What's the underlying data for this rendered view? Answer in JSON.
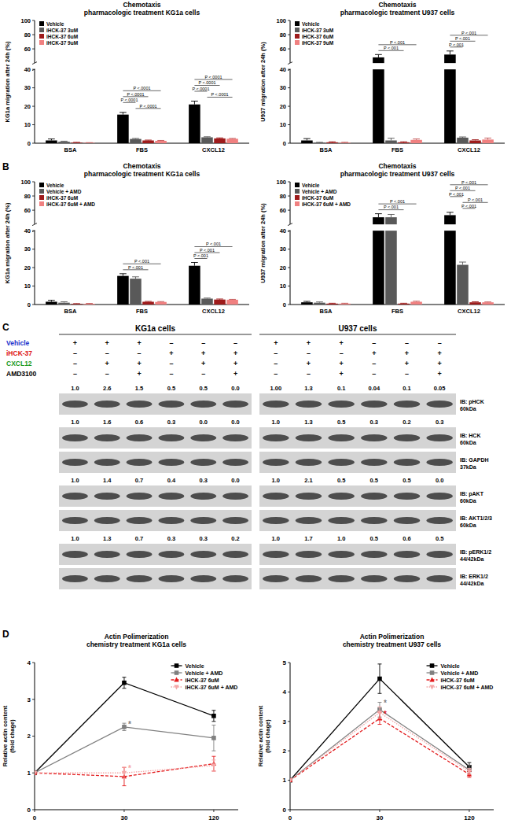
{
  "chart_data": [
    {
      "type": "bar",
      "title": "Chemotaxis",
      "subtitle": "pharmacologic treatment KG1a cells",
      "y_label": "KG1a migration after 24h (%)",
      "categories": [
        "BSA",
        "FBS",
        "CXCL12"
      ],
      "ylim": [
        0,
        100
      ],
      "yticks": [
        0,
        10,
        20,
        30,
        40,
        60,
        80,
        100
      ],
      "legend": "upper left",
      "series": [
        {
          "name": "Vehicle",
          "color": "#000000",
          "values": [
            1.5,
            15.5,
            21
          ],
          "errors": [
            0.8,
            1.2,
            1.8
          ]
        },
        {
          "name": "iHCK-37 3uM",
          "color": "#595959",
          "values": [
            0.8,
            2.3,
            3.2
          ],
          "errors": [
            0.3,
            0.3,
            0.3
          ]
        },
        {
          "name": "iHCK-37 6uM",
          "color": "#9e1b1b",
          "values": [
            0.3,
            1.5,
            2.6
          ],
          "errors": [
            0.2,
            0.2,
            0.3
          ]
        },
        {
          "name": "iHCK-37 9uM",
          "color": "#f08080",
          "values": [
            0.2,
            1.3,
            2.4
          ],
          "errors": [
            0.1,
            0.2,
            0.2
          ]
        }
      ],
      "annotations": [
        {
          "label": "P <.0001",
          "category": 1,
          "series": [
            1,
            3
          ]
        },
        {
          "label": "P <.0001",
          "category": 1,
          "series": [
            0,
            1
          ]
        },
        {
          "label": "P <.0001",
          "category": 1,
          "series": [
            0,
            2
          ]
        },
        {
          "label": "P <.0001",
          "category": 1,
          "series": [
            0,
            3
          ]
        },
        {
          "label": "P <.0001",
          "category": 2,
          "series": [
            1,
            3
          ]
        },
        {
          "label": "P <.0001",
          "category": 2,
          "series": [
            0,
            1
          ]
        },
        {
          "label": "P <.0001",
          "category": 2,
          "series": [
            0,
            2
          ]
        },
        {
          "label": "P <.0001",
          "category": 2,
          "series": [
            0,
            3
          ]
        }
      ]
    },
    {
      "type": "bar",
      "title": "Chemotaxis",
      "subtitle": "pharmacologic treatment U937 cells",
      "y_label": "U937 migration after 24h (%)",
      "categories": [
        "BSA",
        "FBS",
        "CXCL12"
      ],
      "ylim": [
        0,
        100
      ],
      "yticks": [
        0,
        10,
        20,
        30,
        40,
        60,
        80,
        100
      ],
      "legend": "upper left",
      "series": [
        {
          "name": "Vehicle",
          "color": "#000000",
          "values": [
            1.5,
            48,
            52
          ],
          "errors": [
            1,
            4,
            5
          ]
        },
        {
          "name": "iHCK-37 3uM",
          "color": "#595959",
          "values": [
            0.3,
            1.5,
            3
          ],
          "errors": [
            0.2,
            1.2,
            0.4
          ]
        },
        {
          "name": "iHCK-37 6uM",
          "color": "#9e1b1b",
          "values": [
            0.5,
            0.5,
            1.5
          ],
          "errors": [
            0.3,
            0.3,
            0.4
          ]
        },
        {
          "name": "iHCK-37 9uM",
          "color": "#f08080",
          "values": [
            0.3,
            1.8,
            2
          ],
          "errors": [
            0.2,
            0.5,
            0.8
          ]
        }
      ],
      "annotations": [
        {
          "label": "P <.001",
          "category": 1,
          "series": [
            0,
            2
          ]
        },
        {
          "label": "P <.001",
          "category": 1,
          "series": [
            0,
            3
          ]
        },
        {
          "label": "P <.001",
          "category": 2,
          "series": [
            0,
            1
          ]
        },
        {
          "label": "P <.001",
          "category": 2,
          "series": [
            0,
            2
          ]
        },
        {
          "label": "P <.001",
          "category": 2,
          "series": [
            0,
            3
          ]
        }
      ]
    },
    {
      "type": "bar",
      "title": "Chemotaxis",
      "subtitle": "pharmacologic treatment KG1a cells",
      "y_label": "KG1a migration after 24h (%)",
      "categories": [
        "BSA",
        "FBS",
        "CXCL12"
      ],
      "ylim": [
        0,
        100
      ],
      "yticks": [
        0,
        10,
        20,
        30,
        40,
        60,
        80,
        100
      ],
      "legend": "upper left",
      "series": [
        {
          "name": "Vehicle",
          "color": "#000000",
          "values": [
            1.5,
            15.5,
            21
          ],
          "errors": [
            0.8,
            1.2,
            1.8
          ]
        },
        {
          "name": "Vehicle + AMD",
          "color": "#595959",
          "values": [
            1,
            14,
            3.2
          ],
          "errors": [
            0.5,
            1,
            0.3
          ]
        },
        {
          "name": "iHCK-37 6uM",
          "color": "#9e1b1b",
          "values": [
            0.3,
            1.5,
            2.7
          ],
          "errors": [
            0.2,
            0.2,
            0.3
          ]
        },
        {
          "name": "iHCK-37 6uM + AMD",
          "color": "#f08080",
          "values": [
            0.4,
            1.4,
            2.6
          ],
          "errors": [
            0.2,
            0.2,
            0.2
          ]
        }
      ],
      "annotations": [
        {
          "label": "P <.001",
          "category": 1,
          "series": [
            0,
            2
          ]
        },
        {
          "label": "P <.001",
          "category": 1,
          "series": [
            0,
            3
          ]
        },
        {
          "label": "P <.001",
          "category": 2,
          "series": [
            0,
            1
          ]
        },
        {
          "label": "P <.001",
          "category": 2,
          "series": [
            0,
            2
          ]
        },
        {
          "label": "P <.001",
          "category": 2,
          "series": [
            0,
            3
          ]
        }
      ]
    },
    {
      "type": "bar",
      "title": "Chemotaxis",
      "subtitle": "pharmacologic treatment U937 cells",
      "y_label": "U937 migration after 24h (%)",
      "categories": [
        "BSA",
        "FBS",
        "CXCL12"
      ],
      "ylim": [
        0,
        100
      ],
      "yticks": [
        0,
        10,
        20,
        30,
        40,
        60,
        80,
        100
      ],
      "legend": "upper left",
      "series": [
        {
          "name": "Vehicle",
          "color": "#000000",
          "values": [
            1.2,
            50,
            53
          ],
          "errors": [
            0.5,
            5,
            4
          ]
        },
        {
          "name": "Vehicle + AMD",
          "color": "#595959",
          "values": [
            1,
            50,
            21.5
          ],
          "errors": [
            0.4,
            4,
            1.5
          ]
        },
        {
          "name": "iHCK-37 6uM",
          "color": "#9e1b1b",
          "values": [
            0.5,
            0.5,
            1.2
          ],
          "errors": [
            0.2,
            0.2,
            0.3
          ]
        },
        {
          "name": "iHCK-37 6uM + AMD",
          "color": "#f08080",
          "values": [
            0.5,
            1.5,
            1.2
          ],
          "errors": [
            0.2,
            0.3,
            0.2
          ]
        }
      ],
      "annotations": [
        {
          "label": "P <.001",
          "category": 1,
          "series": [
            0,
            2
          ]
        },
        {
          "label": "P <.001",
          "category": 1,
          "series": [
            0,
            3
          ]
        },
        {
          "label": "P <.001",
          "category": 2,
          "series": [
            1,
            2
          ]
        },
        {
          "label": "P <.001",
          "category": 2,
          "series": [
            1,
            3
          ]
        },
        {
          "label": "P <.001",
          "category": 2,
          "series": [
            0,
            1
          ]
        },
        {
          "label": "P <.001",
          "category": 2,
          "series": [
            0,
            2
          ]
        },
        {
          "label": "P <.001",
          "category": 2,
          "series": [
            0,
            3
          ]
        }
      ]
    },
    {
      "type": "line",
      "title": "Actin Polimerization",
      "subtitle": "chemistry treatment KG1a cells",
      "y_label": [
        "Relative actin content",
        "(fold chage)"
      ],
      "categories": [
        "0",
        "30",
        "120"
      ],
      "ylim": [
        0,
        4
      ],
      "yticks": [
        0,
        1,
        2,
        3,
        4
      ],
      "legend": "upper right",
      "series": [
        {
          "name": "Vehicle",
          "color": "#000000",
          "line_style": "solid",
          "marker": "square",
          "values": [
            1,
            3.45,
            2.55
          ],
          "errors": [
            0,
            0.15,
            0.15
          ]
        },
        {
          "name": "Vehicle + AMD",
          "color": "#808080",
          "line_style": "solid",
          "marker": "square",
          "values": [
            1,
            2.25,
            1.95
          ],
          "errors": [
            0,
            0.1,
            0.35
          ]
        },
        {
          "name": "iHCK-37 6uM",
          "color": "#e31a1c",
          "line_style": "dashed",
          "marker": "triangle",
          "values": [
            1,
            0.9,
            1.25
          ],
          "errors": [
            0,
            0.25,
            0.2
          ]
        },
        {
          "name": "iHCK-37 6uM + AMD",
          "color": "#f4a6a6",
          "line_style": "dotted",
          "marker": "triangle-down",
          "values": [
            1,
            1.0,
            1.2
          ],
          "errors": [
            0,
            0.15,
            0.15
          ]
        }
      ],
      "annotations": [
        {
          "label": "*",
          "category": 1,
          "series": 1
        },
        {
          "label": "*",
          "category": 1,
          "series": 3
        }
      ]
    },
    {
      "type": "line",
      "title": "Actin Polimerization",
      "subtitle": "chemistry treatment U937 cells",
      "y_label": [
        "Relative actin content",
        "(fold chage)"
      ],
      "categories": [
        "0",
        "30",
        "120"
      ],
      "ylim": [
        0,
        5
      ],
      "yticks": [
        0,
        1,
        2,
        3,
        4,
        5
      ],
      "legend": "upper right",
      "series": [
        {
          "name": "Vehicle",
          "color": "#000000",
          "line_style": "solid",
          "marker": "square",
          "values": [
            1,
            4.45,
            1.45
          ],
          "errors": [
            0,
            0.5,
            0.15
          ]
        },
        {
          "name": "Vehicle + AMD",
          "color": "#808080",
          "line_style": "solid",
          "marker": "square",
          "values": [
            1,
            3.4,
            1.35
          ],
          "errors": [
            0,
            0.25,
            0.15
          ]
        },
        {
          "name": "iHCK-37 6uM",
          "color": "#e31a1c",
          "line_style": "dashed",
          "marker": "triangle",
          "values": [
            1,
            3.1,
            1.2
          ],
          "errors": [
            0,
            0.2,
            0.1
          ]
        },
        {
          "name": "iHCK-37 6uM + AMD",
          "color": "#f4a6a6",
          "line_style": "dotted",
          "marker": "triangle-down",
          "values": [
            1,
            3.3,
            1.3
          ],
          "errors": [
            0,
            0.2,
            0.1
          ]
        }
      ],
      "annotations": [
        {
          "label": "*",
          "category": 1,
          "series": 1
        },
        {
          "label": "*",
          "category": 1,
          "series": 2
        }
      ]
    }
  ],
  "panel_labels": [
    "B",
    "C",
    "D"
  ],
  "blot": {
    "groups": [
      "KG1a cells",
      "U937 cells"
    ],
    "treatments": [
      {
        "label": "Vehicle",
        "color": "#2233cc",
        "lanes": [
          "+",
          "+",
          "+",
          "–",
          "–",
          "–",
          "+",
          "+",
          "+",
          "–",
          "–",
          "–"
        ]
      },
      {
        "label": "iHCK-37",
        "color": "#dd1111",
        "lanes": [
          "–",
          "–",
          "–",
          "+",
          "+",
          "+",
          "–",
          "–",
          "–",
          "+",
          "+",
          "+"
        ]
      },
      {
        "label": "CXCL12",
        "color": "#1a9a1a",
        "lanes": [
          "–",
          "+",
          "+",
          "–",
          "+",
          "+",
          "–",
          "+",
          "+",
          "–",
          "+",
          "+"
        ]
      },
      {
        "label": "AMD3100",
        "color": "#000000",
        "lanes": [
          "–",
          "–",
          "+",
          "–",
          "–",
          "+",
          "–",
          "–",
          "+",
          "–",
          "–",
          "+"
        ]
      }
    ],
    "blots": [
      {
        "ib": "IB: pHCK",
        "kda": "60kDa",
        "quant": [
          [
            "1.0",
            "2.6",
            "1.5",
            "0.5",
            "0.5",
            "0.0"
          ],
          [
            "1.00",
            "1.3",
            "0.1",
            "0.04",
            "0.1",
            "0.05"
          ]
        ]
      },
      {
        "ib": "IB: HCK",
        "kda": "60kDa",
        "quant": [
          [
            "1.0",
            "1.6",
            "0.6",
            "0.3",
            "0.0",
            "0.0"
          ],
          [
            "1.0",
            "1.3",
            "0.5",
            "0.3",
            "0.2",
            "0.3"
          ]
        ]
      },
      {
        "ib": "IB: GAPDH",
        "kda": "37kDa",
        "quant": null
      },
      {
        "ib": "IB: pAKT",
        "kda": "60kDa",
        "quant": [
          [
            "1.0",
            "1.4",
            "0.7",
            "0.4",
            "0.3",
            "0.0"
          ],
          [
            "1.0",
            "2.1",
            "0.5",
            "0.5",
            "0.5",
            "0.0"
          ]
        ]
      },
      {
        "ib": "IB: AKT1/2/3",
        "kda": "60kDa",
        "quant": null
      },
      {
        "ib": "IB: pERK1/2",
        "kda": "44/42kDa",
        "quant": [
          [
            "1.0",
            "1.3",
            "0.7",
            "0.3",
            "0.3",
            "0.2"
          ],
          [
            "1.0",
            "1.7",
            "1.0",
            "0.5",
            "0.6",
            "0.5"
          ]
        ]
      },
      {
        "ib": "IB: ERK1/2",
        "kda": "44/42kDa",
        "quant": null
      }
    ]
  }
}
